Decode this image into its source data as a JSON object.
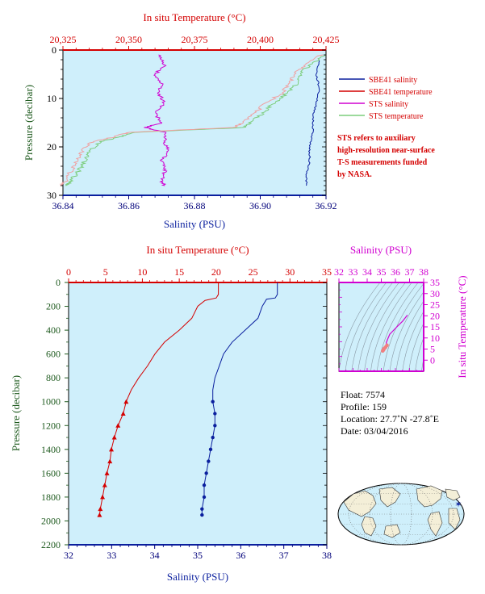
{
  "colors": {
    "red": "#d40000",
    "blue": "#0a1f9e",
    "magenta": "#d100d1",
    "green": "#1e5a1e",
    "navy": "#00007a",
    "plotBg": "#cfeffb",
    "stsTemp": "#7ccd7c",
    "stsPink": "#f0a0a0"
  },
  "chart_data": [
    {
      "id": "top",
      "type": "line",
      "xlabel": "Salinity (PSU)",
      "x2label": "In situ Temperature (°C)",
      "ylabel": "Pressure (decibar)",
      "xlim": [
        36.84,
        36.92
      ],
      "x2lim": [
        20.325,
        20.425
      ],
      "ylim": [
        30,
        0
      ],
      "xticks": [
        "36.84",
        "36.86",
        "36.88",
        "36.90",
        "36.92"
      ],
      "x2ticks": [
        "20,325",
        "20,350",
        "20,375",
        "20,400",
        "20,425"
      ],
      "yticks": [
        "0",
        "10",
        "20",
        "30"
      ],
      "legend": [
        "SBE41 salinity",
        "SBE41 temperature",
        "STS salinity",
        "STS temperature"
      ],
      "note": [
        "STS refers to auxiliary",
        "high-resolution near-surface",
        "T-S measurements funded",
        "by NASA."
      ],
      "series": [
        {
          "name": "STS salinity",
          "axis": "salinity",
          "points": [
            [
              36.869,
              1
            ],
            [
              36.871,
              3
            ],
            [
              36.868,
              5
            ],
            [
              36.87,
              7
            ],
            [
              36.869,
              9
            ],
            [
              36.871,
              11
            ],
            [
              36.868,
              13
            ],
            [
              36.87,
              15
            ],
            [
              36.865,
              16
            ],
            [
              36.871,
              17
            ],
            [
              36.871,
              19
            ],
            [
              36.872,
              21
            ],
            [
              36.87,
              23
            ],
            [
              36.871,
              25
            ],
            [
              36.87,
              27
            ],
            [
              36.871,
              28
            ]
          ]
        },
        {
          "name": "SBE41 salinity",
          "axis": "salinity",
          "points": [
            [
              36.918,
              2
            ],
            [
              36.917,
              5
            ],
            [
              36.918,
              8
            ],
            [
              36.917,
              11
            ],
            [
              36.916,
              14
            ],
            [
              36.916,
              17
            ],
            [
              36.915,
              20
            ],
            [
              36.915,
              23
            ],
            [
              36.914,
              26
            ],
            [
              36.914,
              28
            ]
          ]
        },
        {
          "name": "STS temperature",
          "axis": "temperature",
          "points": [
            [
              20.425,
              1
            ],
            [
              20.419,
              3
            ],
            [
              20.415,
              5
            ],
            [
              20.414,
              7
            ],
            [
              20.41,
              9
            ],
            [
              20.405,
              11
            ],
            [
              20.401,
              13
            ],
            [
              20.396,
              15
            ],
            [
              20.394,
              16
            ],
            [
              20.352,
              17
            ],
            [
              20.346,
              18
            ],
            [
              20.339,
              19
            ],
            [
              20.335,
              21
            ],
            [
              20.333,
              23
            ],
            [
              20.331,
              25
            ],
            [
              20.328,
              27
            ],
            [
              20.326,
              28
            ]
          ]
        },
        {
          "name": "SBE41 temperature",
          "axis": "temperature",
          "points": [
            [
              20.423,
              1
            ],
            [
              20.417,
              3
            ],
            [
              20.413,
              5
            ],
            [
              20.411,
              7
            ],
            [
              20.408,
              9
            ],
            [
              20.402,
              11
            ],
            [
              20.398,
              13
            ],
            [
              20.393,
              15
            ],
            [
              20.39,
              16
            ],
            [
              20.35,
              17
            ],
            [
              20.344,
              18
            ],
            [
              20.336,
              19
            ],
            [
              20.332,
              21
            ],
            [
              20.33,
              23
            ],
            [
              20.328,
              25
            ],
            [
              20.326,
              27
            ],
            [
              20.324,
              28
            ]
          ]
        }
      ]
    },
    {
      "id": "bottom",
      "type": "line",
      "xlabel": "Salinity (PSU)",
      "x2label": "In situ Temperature (°C)",
      "ylabel": "Pressure (decibar)",
      "xlim": [
        32,
        38
      ],
      "x2lim": [
        0,
        35
      ],
      "ylim": [
        2200,
        0
      ],
      "xticks": [
        "32",
        "33",
        "34",
        "35",
        "36",
        "37",
        "38"
      ],
      "x2ticks": [
        "0",
        "5",
        "10",
        "15",
        "20",
        "25",
        "30",
        "35"
      ],
      "yticks": [
        "0",
        "200",
        "400",
        "600",
        "800",
        "1000",
        "1200",
        "1400",
        "1600",
        "1800",
        "2000",
        "2200"
      ],
      "series": [
        {
          "name": "Salinity",
          "axis": "salinity",
          "points": [
            [
              36.85,
              0
            ],
            [
              36.85,
              100
            ],
            [
              36.8,
              130
            ],
            [
              36.6,
              140
            ],
            [
              36.5,
              200
            ],
            [
              36.4,
              300
            ],
            [
              36.1,
              400
            ],
            [
              35.8,
              500
            ],
            [
              35.6,
              600
            ],
            [
              35.5,
              700
            ],
            [
              35.4,
              800
            ],
            [
              35.35,
              900
            ],
            [
              35.35,
              1000
            ],
            [
              35.4,
              1100
            ],
            [
              35.4,
              1200
            ],
            [
              35.35,
              1300
            ],
            [
              35.3,
              1400
            ],
            [
              35.25,
              1500
            ],
            [
              35.2,
              1600
            ],
            [
              35.15,
              1700
            ],
            [
              35.15,
              1800
            ],
            [
              35.1,
              1900
            ],
            [
              35.1,
              1950
            ]
          ]
        },
        {
          "name": "Temperature",
          "axis": "temperature",
          "points": [
            [
              20.3,
              0
            ],
            [
              20.3,
              100
            ],
            [
              20.0,
              130
            ],
            [
              18.5,
              150
            ],
            [
              17.5,
              200
            ],
            [
              16.7,
              300
            ],
            [
              15.0,
              400
            ],
            [
              13.0,
              500
            ],
            [
              11.7,
              600
            ],
            [
              10.7,
              700
            ],
            [
              9.5,
              800
            ],
            [
              8.5,
              900
            ],
            [
              7.8,
              1000
            ],
            [
              7.4,
              1100
            ],
            [
              6.7,
              1200
            ],
            [
              6.2,
              1300
            ],
            [
              5.8,
              1400
            ],
            [
              5.6,
              1500
            ],
            [
              5.2,
              1600
            ],
            [
              4.9,
              1700
            ],
            [
              4.6,
              1800
            ],
            [
              4.3,
              1900
            ],
            [
              4.2,
              1950
            ]
          ]
        }
      ],
      "markers_from": 1000
    },
    {
      "id": "ts",
      "type": "line",
      "xlabel": "Salinity (PSU)",
      "ylabel": "In situ Temperature (°C)",
      "xlim": [
        32,
        38
      ],
      "ylim": [
        -5,
        35
      ],
      "xticks": [
        "32",
        "33",
        "34",
        "35",
        "36",
        "37",
        "38"
      ],
      "yticks": [
        "0",
        "5",
        "10",
        "15",
        "20",
        "25",
        "30",
        "35"
      ],
      "series": [
        {
          "name": "T-S profile",
          "points": [
            [
              36.85,
              20.3
            ],
            [
              36.5,
              17.5
            ],
            [
              36.1,
              15.0
            ],
            [
              35.8,
              13.0
            ],
            [
              35.6,
              11.7
            ],
            [
              35.45,
              9.5
            ],
            [
              35.35,
              7.8
            ],
            [
              35.4,
              6.7
            ],
            [
              35.3,
              5.8
            ],
            [
              35.2,
              5.2
            ],
            [
              35.15,
              4.6
            ],
            [
              35.1,
              4.2
            ]
          ]
        }
      ]
    }
  ],
  "info": {
    "float": "Float:  7574",
    "profile": "Profile:  159",
    "location": "Location:  27.7˚N  -27.8˚E",
    "date": "Date:  03/04/2016"
  },
  "map": {
    "marker_lat": 27.7,
    "marker_lon": -27.8
  }
}
